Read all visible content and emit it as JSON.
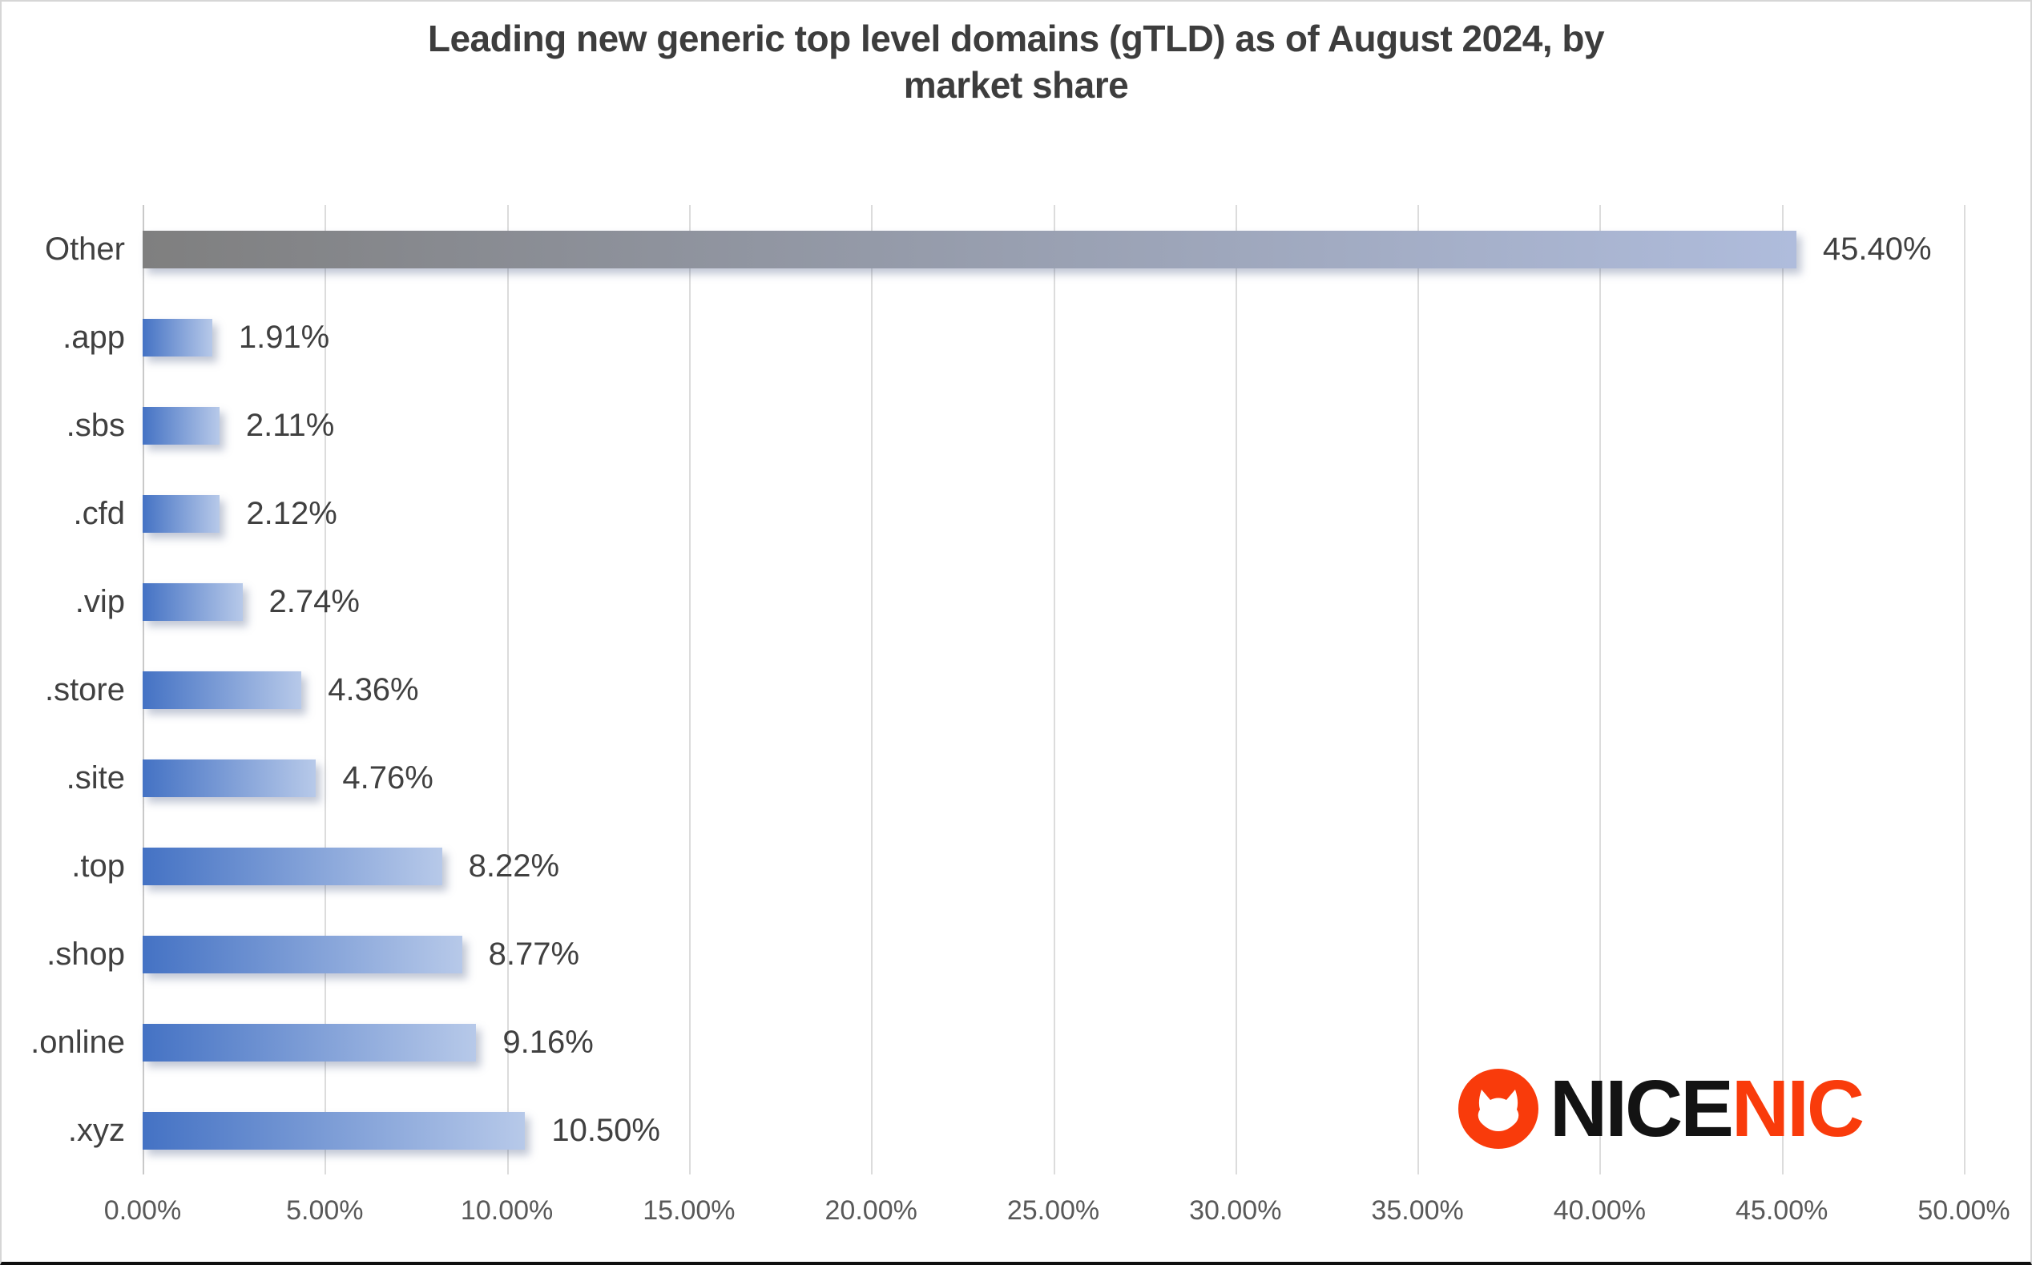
{
  "title": {
    "line1": "Leading new generic top level domains (gTLD) as of August 2024, by",
    "line2": "market share"
  },
  "chart_data": {
    "type": "bar",
    "orientation": "horizontal",
    "title": "Leading new generic top level domains (gTLD) as of August 2024, by market share",
    "xlabel": "",
    "ylabel": "",
    "categories": [
      "Other",
      ".app",
      ".sbs",
      ".cfd",
      ".vip",
      ".store",
      ".site",
      ".top",
      ".shop",
      ".online",
      ".xyz"
    ],
    "values": [
      45.4,
      1.91,
      2.11,
      2.12,
      2.74,
      4.36,
      4.76,
      8.22,
      8.77,
      9.16,
      10.5
    ],
    "value_labels": [
      "45.40%",
      "1.91%",
      "2.11%",
      "2.12%",
      "2.74%",
      "4.36%",
      "4.76%",
      "8.22%",
      "8.77%",
      "9.16%",
      "10.50%"
    ],
    "data_label_shown_for": "all_except_first",
    "first_bar_label": "45.40%",
    "xlim": [
      0,
      50
    ],
    "x_ticks": [
      "0.00%",
      "5.00%",
      "10.00%",
      "15.00%",
      "20.00%",
      "25.00%",
      "30.00%",
      "35.00%",
      "40.00%",
      "45.00%",
      "50.00%"
    ],
    "grid": true,
    "legend": false,
    "gray_category": "Other",
    "colors": {
      "bar_gradient_start": "#4472C4",
      "bar_gradient_end": "#B7C9E9",
      "other_gradient_start": "#7F7F7F",
      "other_gradient_end": "#AFBCDC",
      "gridline": "#DCDCDC",
      "label_text": "#404040",
      "tick_text": "#595959",
      "title_text": "#3D3D3D"
    }
  },
  "logo": {
    "icon": "cat-icon",
    "text_black": "NICE",
    "text_accent": "NIC",
    "accent_color": "#F93B0B",
    "icon_color": "#F93B0B"
  }
}
